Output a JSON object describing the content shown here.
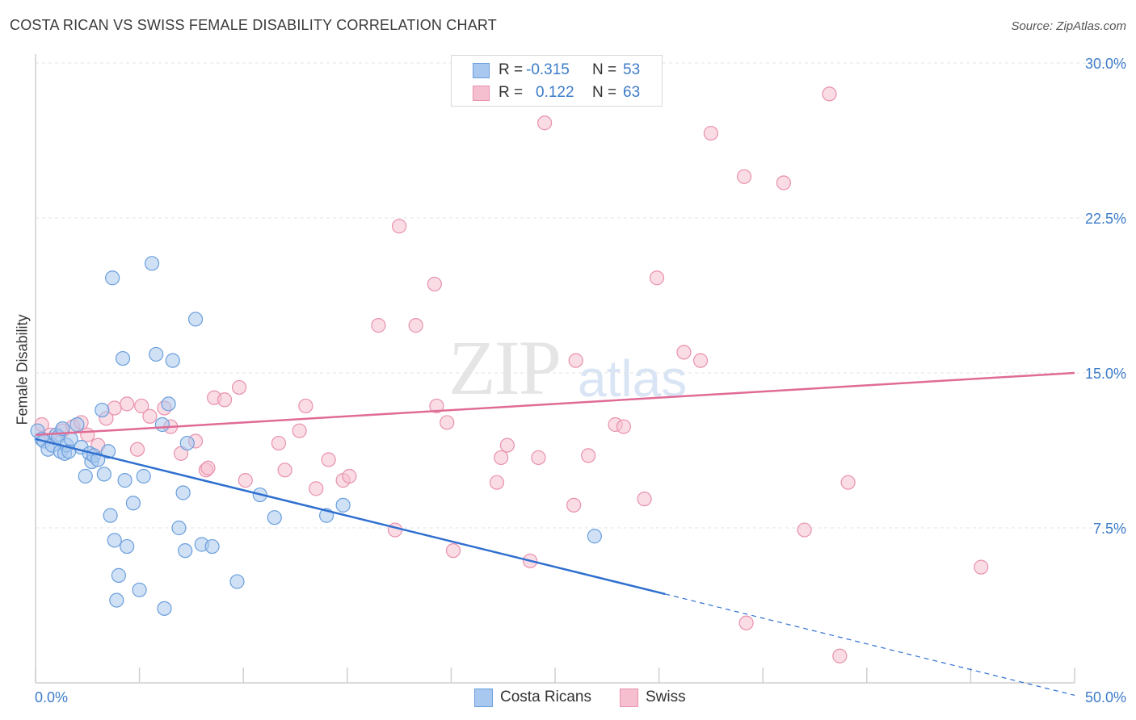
{
  "header": {
    "title": "COSTA RICAN VS SWISS FEMALE DISABILITY CORRELATION CHART",
    "source": "Source: ZipAtlas.com"
  },
  "watermark": {
    "zip": "ZIP",
    "atlas": "atlas"
  },
  "stats": {
    "costa": {
      "r_label": "R =",
      "r_value": "-0.315",
      "n_label": "N =",
      "n_value": "53"
    },
    "swiss": {
      "r_label": "R =",
      "r_value": "0.122",
      "n_label": "N =",
      "n_value": "63"
    }
  },
  "legend": {
    "costa": "Costa Ricans",
    "swiss": "Swiss"
  },
  "colors": {
    "costa_fill": "#a9c8ef",
    "costa_stroke": "#6a9fdc",
    "costa_line": "#2f6fd0",
    "swiss_fill": "#f6bfd0",
    "swiss_stroke": "#e891ad",
    "swiss_line": "#e06b96",
    "axis_label": "#3d7cc9",
    "grid": "#e3e3e3"
  },
  "chart_data": {
    "type": "scatter",
    "title": "COSTA RICAN VS SWISS FEMALE DISABILITY CORRELATION CHART",
    "xlabel": "",
    "ylabel": "Female Disability",
    "xlim": [
      0,
      50
    ],
    "ylim": [
      0,
      30
    ],
    "x_tick_labels": [
      "0.0%",
      "50.0%"
    ],
    "y_ticks": [
      7.5,
      15.0,
      22.5,
      30.0
    ],
    "y_tick_labels": [
      "7.5%",
      "15.0%",
      "22.5%",
      "30.0%"
    ],
    "grid": "horizontal dashed",
    "legend_position": "bottom-center",
    "series": [
      {
        "name": "Costa Ricans",
        "x": [
          0.1,
          0.3,
          0.4,
          0.6,
          0.8,
          1.0,
          1.1,
          1.2,
          1.3,
          1.4,
          1.5,
          1.6,
          1.7,
          2.0,
          2.2,
          2.4,
          2.6,
          2.7,
          2.8,
          3.0,
          3.2,
          3.5,
          3.6,
          3.7,
          3.8,
          3.9,
          4.0,
          4.2,
          4.4,
          4.7,
          5.0,
          5.2,
          5.6,
          5.8,
          6.1,
          6.4,
          6.6,
          6.9,
          7.1,
          7.3,
          7.7,
          8.0,
          7.2,
          8.5,
          9.7,
          10.8,
          11.5,
          14.8,
          14.0,
          26.9,
          6.2,
          3.3,
          4.3
        ],
        "y": [
          12.2,
          11.8,
          11.7,
          11.3,
          11.5,
          12.0,
          11.9,
          11.2,
          12.3,
          11.1,
          11.5,
          11.2,
          11.8,
          12.5,
          11.4,
          10.0,
          11.1,
          10.7,
          11.0,
          10.8,
          13.2,
          11.2,
          8.1,
          19.6,
          6.9,
          4.0,
          5.2,
          15.7,
          6.6,
          8.7,
          4.5,
          10.0,
          20.3,
          15.9,
          12.5,
          13.5,
          15.6,
          7.5,
          9.2,
          11.6,
          17.6,
          6.7,
          6.4,
          6.6,
          4.9,
          9.1,
          8.0,
          8.6,
          8.1,
          7.1,
          3.6,
          10.1,
          9.8
        ],
        "trend": {
          "x": [
            0,
            30.3
          ],
          "y": [
            11.8,
            4.3
          ],
          "dashed_to": [
            50,
            -0.6
          ]
        }
      },
      {
        "name": "Swiss",
        "x": [
          0.3,
          0.7,
          1.3,
          1.8,
          2.2,
          2.5,
          3.0,
          3.4,
          3.8,
          4.4,
          4.9,
          5.1,
          5.5,
          6.2,
          6.5,
          7.0,
          7.7,
          8.2,
          8.3,
          8.6,
          9.1,
          9.8,
          10.1,
          11.7,
          12.0,
          12.7,
          13.0,
          13.5,
          14.1,
          14.8,
          15.1,
          16.5,
          17.5,
          17.3,
          18.3,
          19.2,
          19.3,
          19.8,
          20.1,
          22.2,
          22.4,
          22.7,
          23.8,
          24.2,
          24.5,
          25.9,
          26.0,
          26.6,
          27.9,
          28.3,
          29.3,
          29.9,
          31.2,
          32.0,
          32.5,
          34.1,
          34.2,
          36.0,
          37.0,
          38.2,
          38.7,
          39.1,
          45.5
        ],
        "y": [
          12.5,
          12.0,
          12.2,
          12.4,
          12.6,
          12.0,
          11.5,
          12.8,
          13.3,
          13.5,
          11.3,
          13.4,
          12.9,
          13.3,
          12.4,
          11.1,
          11.7,
          10.3,
          10.4,
          13.8,
          13.7,
          14.3,
          9.8,
          11.6,
          10.3,
          12.2,
          13.4,
          9.4,
          10.8,
          9.8,
          10.0,
          17.3,
          22.1,
          7.4,
          17.3,
          19.3,
          13.4,
          12.6,
          6.4,
          9.7,
          10.9,
          11.5,
          5.9,
          10.9,
          27.1,
          8.6,
          15.6,
          11.0,
          12.5,
          12.4,
          8.9,
          19.6,
          16.0,
          15.6,
          26.6,
          24.5,
          2.9,
          24.2,
          7.4,
          28.5,
          1.3,
          9.7,
          5.6
        ],
        "trend": {
          "x": [
            0,
            50
          ],
          "y": [
            12.0,
            15.0
          ]
        }
      }
    ]
  }
}
